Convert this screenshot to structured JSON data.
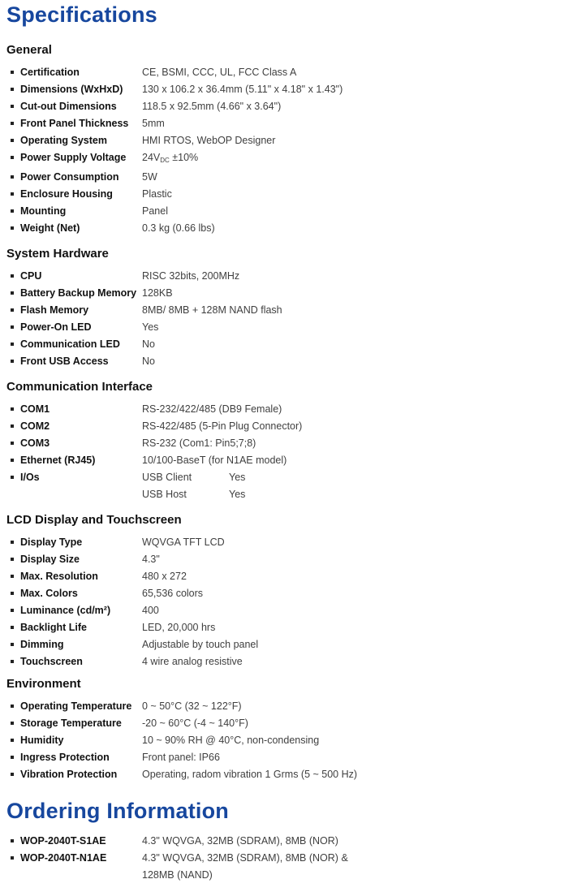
{
  "titles": {
    "specifications": "Specifications",
    "ordering": "Ordering Information"
  },
  "colors": {
    "heading_blue": "#17479e",
    "section_text": "#111111",
    "value_text": "#3f3f3f"
  },
  "sections": [
    {
      "title": "General",
      "rows": [
        {
          "label": "Certification",
          "value": "CE, BSMI, CCC, UL, FCC Class A"
        },
        {
          "label": "Dimensions (WxHxD)",
          "value": "130 x 106.2 x 36.4mm (5.11\" x 4.18\" x 1.43\")"
        },
        {
          "label": "Cut-out Dimensions",
          "value": "118.5 x 92.5mm (4.66\" x 3.64\")"
        },
        {
          "label": "Front Panel Thickness",
          "value": "5mm"
        },
        {
          "label": "Operating System",
          "value": "HMI RTOS, WebOP Designer"
        },
        {
          "label": "Power Supply Voltage",
          "value": {
            "pre": "24V",
            "sub": "DC",
            "post": " ±10%"
          }
        },
        {
          "label": "Power Consumption",
          "value": "5W"
        },
        {
          "label": "Enclosure Housing",
          "value": "Plastic"
        },
        {
          "label": "Mounting",
          "value": "Panel"
        },
        {
          "label": "Weight (Net)",
          "value": "0.3 kg (0.66 lbs)"
        }
      ]
    },
    {
      "title": "System Hardware",
      "rows": [
        {
          "label": "CPU",
          "value": "RISC 32bits, 200MHz"
        },
        {
          "label": "Battery Backup Memory",
          "value": "128KB"
        },
        {
          "label": "Flash Memory",
          "value": "8MB/ 8MB + 128M NAND flash"
        },
        {
          "label": "Power-On LED",
          "value": "Yes"
        },
        {
          "label": "Communication LED",
          "value": "No"
        },
        {
          "label": "Front USB Access",
          "value": "No"
        }
      ]
    },
    {
      "title": "Communication Interface",
      "rows": [
        {
          "label": "COM1",
          "value": "RS-232/422/485 (DB9 Female)"
        },
        {
          "label": "COM2",
          "value": "RS-422/485 (5-Pin Plug Connector)"
        },
        {
          "label": "COM3",
          "value": "RS-232 (Com1: Pin5;7;8)"
        },
        {
          "label": "Ethernet (RJ45)",
          "value": "10/100-BaseT (for N1AE model)"
        },
        {
          "label": "I/Os",
          "value": {
            "pairs": [
              [
                "USB Client",
                "Yes"
              ],
              [
                "USB Host",
                "Yes"
              ]
            ]
          }
        }
      ]
    },
    {
      "title": "LCD Display and Touchscreen",
      "rows": [
        {
          "label": "Display Type",
          "value": "WQVGA TFT LCD"
        },
        {
          "label": "Display Size",
          "value": "4.3\""
        },
        {
          "label": "Max. Resolution",
          "value": "480 x 272"
        },
        {
          "label": "Max. Colors",
          "value": "65,536 colors"
        },
        {
          "label": "Luminance (cd/m²)",
          "value": "400"
        },
        {
          "label": "Backlight Life",
          "value": "LED, 20,000 hrs"
        },
        {
          "label": "Dimming",
          "value": "Adjustable by touch panel"
        },
        {
          "label": "Touchscreen",
          "value": "4 wire analog resistive"
        }
      ]
    },
    {
      "title": "Environment",
      "rows": [
        {
          "label": "Operating Temperature",
          "value": "0 ~ 50°C (32 ~ 122°F)"
        },
        {
          "label": "Storage Temperature",
          "value": "-20 ~ 60°C (-4 ~ 140°F)"
        },
        {
          "label": "Humidity",
          "value": "10 ~ 90% RH @ 40°C, non-condensing"
        },
        {
          "label": "Ingress Protection",
          "value": "Front panel: IP66"
        },
        {
          "label": "Vibration Protection",
          "value": "Operating, radom vibration 1 Grms (5 ~ 500 Hz)"
        }
      ]
    }
  ],
  "ordering": {
    "rows": [
      {
        "label": "WOP-2040T-S1AE",
        "value": "4.3\" WQVGA, 32MB (SDRAM), 8MB (NOR)"
      },
      {
        "label": "WOP-2040T-N1AE",
        "value": "4.3\" WQVGA, 32MB (SDRAM), 8MB (NOR) & 128MB (NAND)"
      }
    ]
  }
}
